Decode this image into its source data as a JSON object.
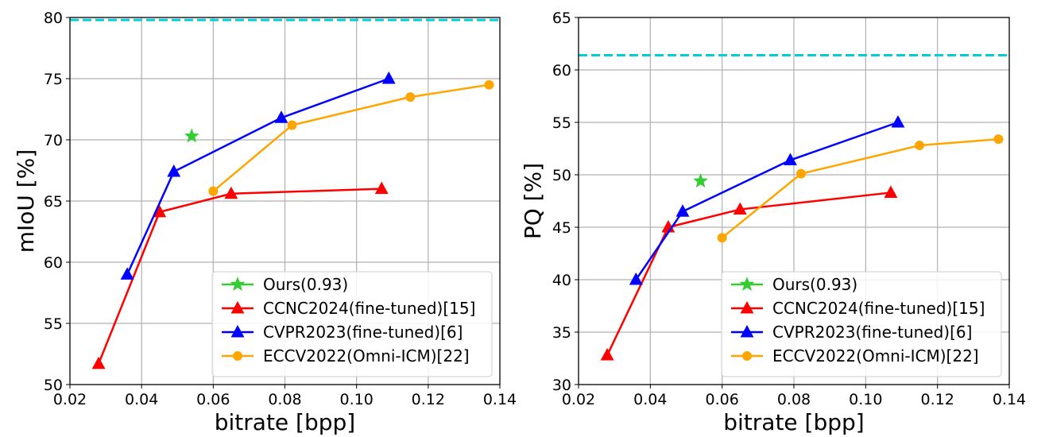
{
  "chart_data": [
    {
      "type": "line",
      "xlabel": "bitrate [bpp]",
      "ylabel": "mIoU [%]",
      "xlim": [
        0.02,
        0.14
      ],
      "ylim": [
        50,
        80
      ],
      "xticks": [
        0.02,
        0.04,
        0.06,
        0.08,
        0.1,
        0.12,
        0.14
      ],
      "xtick_labels": [
        "0.02",
        "0.04",
        "0.06",
        "0.08",
        "0.10",
        "0.12",
        "0.14"
      ],
      "yticks": [
        50,
        55,
        60,
        65,
        70,
        75,
        80
      ],
      "ytick_labels": [
        "50",
        "55",
        "60",
        "65",
        "70",
        "75",
        "80"
      ],
      "grid": true,
      "legend_position": "bottom-right",
      "reference_line": {
        "y": 79.8,
        "color": "#00cfd8",
        "style": "dashed"
      },
      "series": [
        {
          "name": "Ours(0.93)",
          "marker": "star",
          "color": "#33cc33",
          "x": [
            0.054
          ],
          "y": [
            70.3
          ]
        },
        {
          "name": "CCNC2024(fine-tuned)[15]",
          "marker": "triangle",
          "color": "#ff0000",
          "x": [
            0.028,
            0.045,
            0.065,
            0.107
          ],
          "y": [
            51.7,
            64.1,
            65.6,
            66.0
          ]
        },
        {
          "name": "CVPR2023(fine-tuned)[6]",
          "marker": "triangle",
          "color": "#0000ff",
          "x": [
            0.036,
            0.049,
            0.079,
            0.109
          ],
          "y": [
            59.0,
            67.4,
            71.8,
            75.0
          ]
        },
        {
          "name": "ECCV2022(Omni-ICM)[22]",
          "marker": "circle",
          "color": "#ffa500",
          "x": [
            0.06,
            0.082,
            0.115,
            0.137
          ],
          "y": [
            65.8,
            71.2,
            73.5,
            74.5
          ]
        }
      ]
    },
    {
      "type": "line",
      "xlabel": "bitrate [bpp]",
      "ylabel": "PQ [%]",
      "xlim": [
        0.02,
        0.14
      ],
      "ylim": [
        30,
        65
      ],
      "xticks": [
        0.02,
        0.04,
        0.06,
        0.08,
        0.1,
        0.12,
        0.14
      ],
      "xtick_labels": [
        "0.02",
        "0.04",
        "0.06",
        "0.08",
        "0.10",
        "0.12",
        "0.14"
      ],
      "yticks": [
        30,
        35,
        40,
        45,
        50,
        55,
        60,
        65
      ],
      "ytick_labels": [
        "30",
        "35",
        "40",
        "45",
        "50",
        "55",
        "60",
        "65"
      ],
      "grid": true,
      "legend_position": "bottom-right",
      "reference_line": {
        "y": 61.4,
        "color": "#00cfd8",
        "style": "dashed"
      },
      "series": [
        {
          "name": "Ours(0.93)",
          "marker": "star",
          "color": "#33cc33",
          "x": [
            0.054
          ],
          "y": [
            49.4
          ]
        },
        {
          "name": "CCNC2024(fine-tuned)[15]",
          "marker": "triangle",
          "color": "#ff0000",
          "x": [
            0.028,
            0.045,
            0.065,
            0.107
          ],
          "y": [
            32.8,
            45.0,
            46.7,
            48.3
          ]
        },
        {
          "name": "CVPR2023(fine-tuned)[6]",
          "marker": "triangle",
          "color": "#0000ff",
          "x": [
            0.036,
            0.049,
            0.079,
            0.109
          ],
          "y": [
            40.0,
            46.5,
            51.4,
            55.0
          ]
        },
        {
          "name": "ECCV2022(Omni-ICM)[22]",
          "marker": "circle",
          "color": "#ffa500",
          "x": [
            0.06,
            0.082,
            0.115,
            0.137
          ],
          "y": [
            44.0,
            50.1,
            52.8,
            53.4
          ]
        }
      ]
    }
  ]
}
